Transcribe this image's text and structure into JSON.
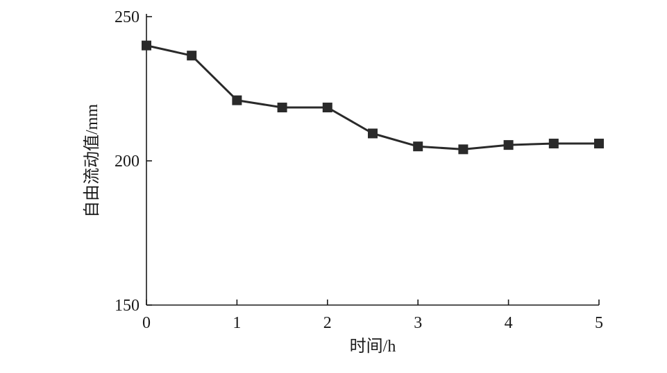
{
  "chart_data": {
    "type": "line",
    "title": "",
    "xlabel": "时间/h",
    "ylabel": "自由流动值/mm",
    "xlim": [
      0,
      5
    ],
    "ylim": [
      150,
      250
    ],
    "xticks": [
      0,
      1,
      2,
      3,
      4,
      5
    ],
    "yticks": [
      150,
      200,
      250
    ],
    "grid": false,
    "legend": "none",
    "marker": "square",
    "series": [
      {
        "x": [
          0,
          0.5,
          1,
          1.5,
          2,
          2.5,
          3,
          3.5,
          4,
          4.5,
          5
        ],
        "y": [
          240,
          236.5,
          221,
          218.5,
          218.5,
          209.5,
          205,
          204,
          205.5,
          206,
          206
        ],
        "color": "#2a2a2a"
      }
    ]
  }
}
